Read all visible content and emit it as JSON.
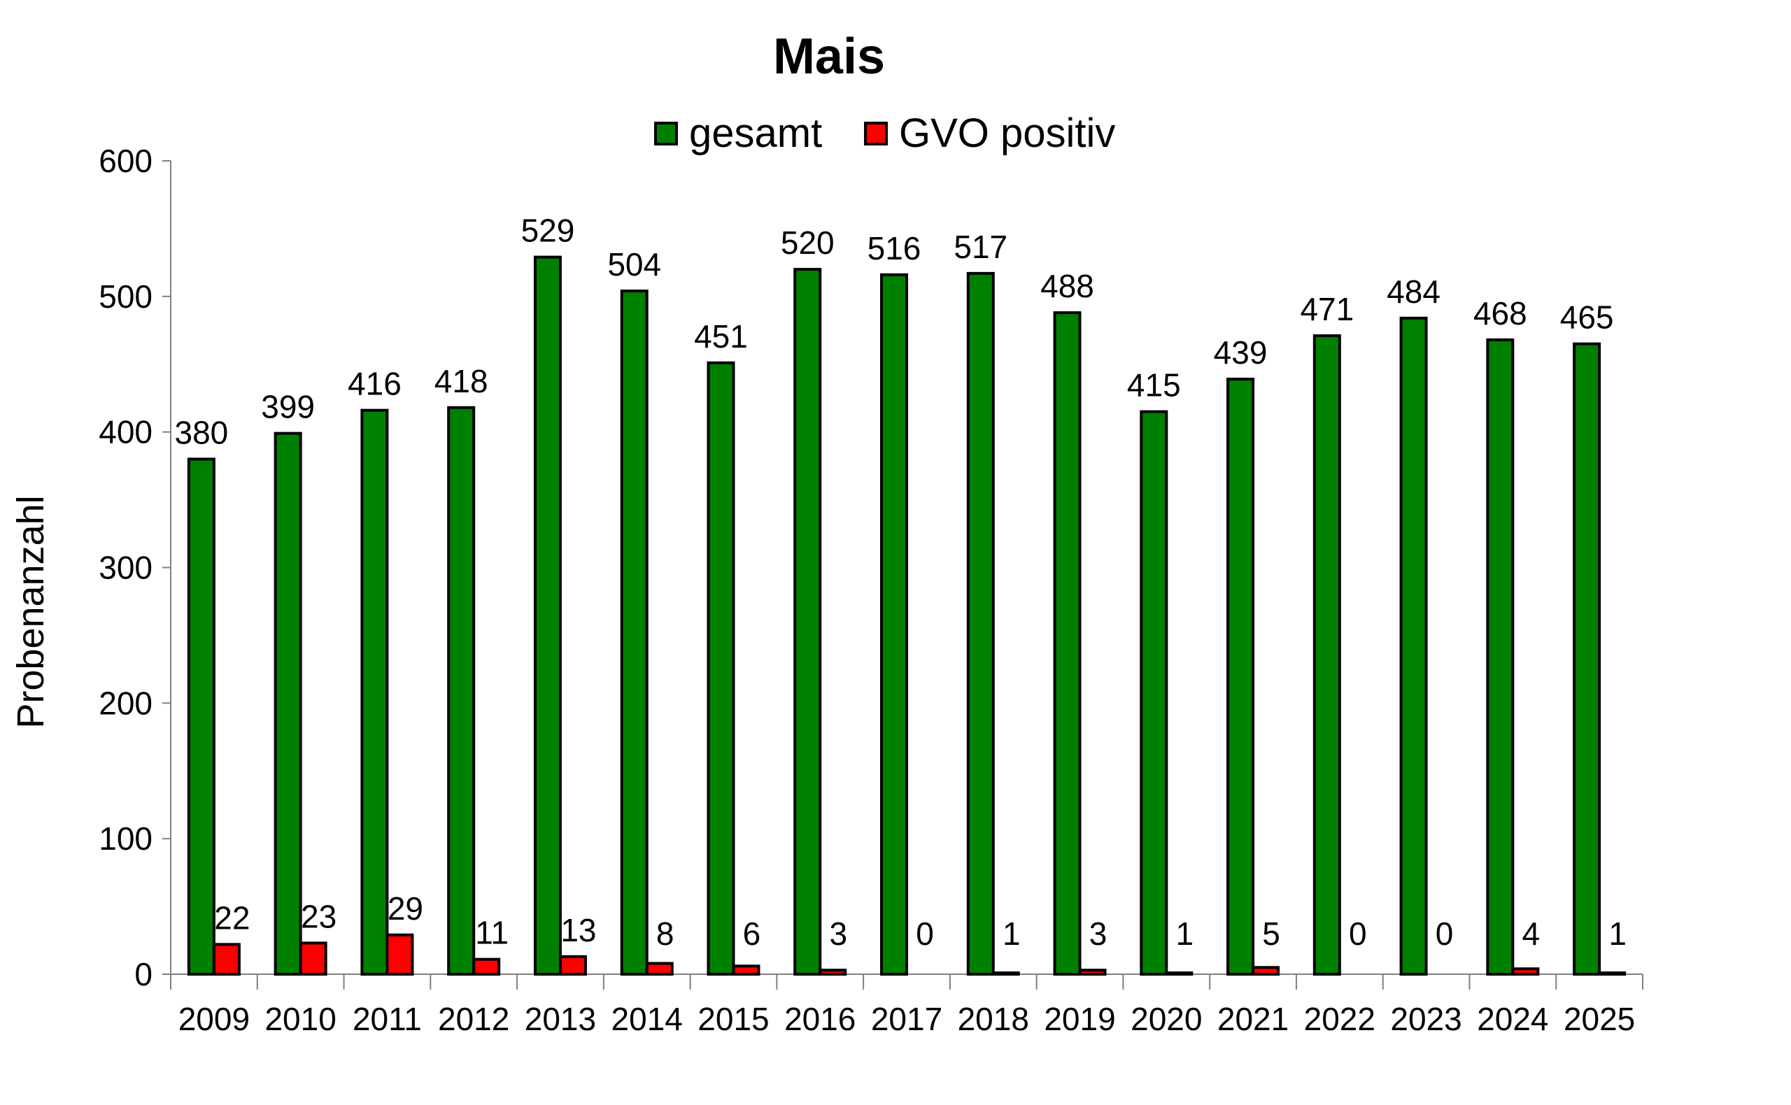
{
  "chart_data": {
    "type": "bar",
    "title": "Mais",
    "xlabel": "",
    "ylabel": "Probenanzahl",
    "ylim": [
      0,
      600
    ],
    "yticks": [
      0,
      100,
      200,
      300,
      400,
      500,
      600
    ],
    "grid": false,
    "legend_position": "top-center",
    "categories": [
      "2009",
      "2010",
      "2011",
      "2012",
      "2013",
      "2014",
      "2015",
      "2016",
      "2017",
      "2018",
      "2019",
      "2020",
      "2021",
      "2022",
      "2023",
      "2024",
      "2025"
    ],
    "series": [
      {
        "name": "gesamt",
        "color": "#008000",
        "values": [
          380,
          399,
          416,
          418,
          529,
          504,
          451,
          520,
          516,
          517,
          488,
          415,
          439,
          471,
          484,
          468,
          465
        ]
      },
      {
        "name": "GVO positiv",
        "color": "#ff0000",
        "values": [
          22,
          23,
          29,
          11,
          13,
          8,
          6,
          3,
          0,
          1,
          3,
          1,
          5,
          0,
          0,
          4,
          1
        ]
      }
    ]
  }
}
